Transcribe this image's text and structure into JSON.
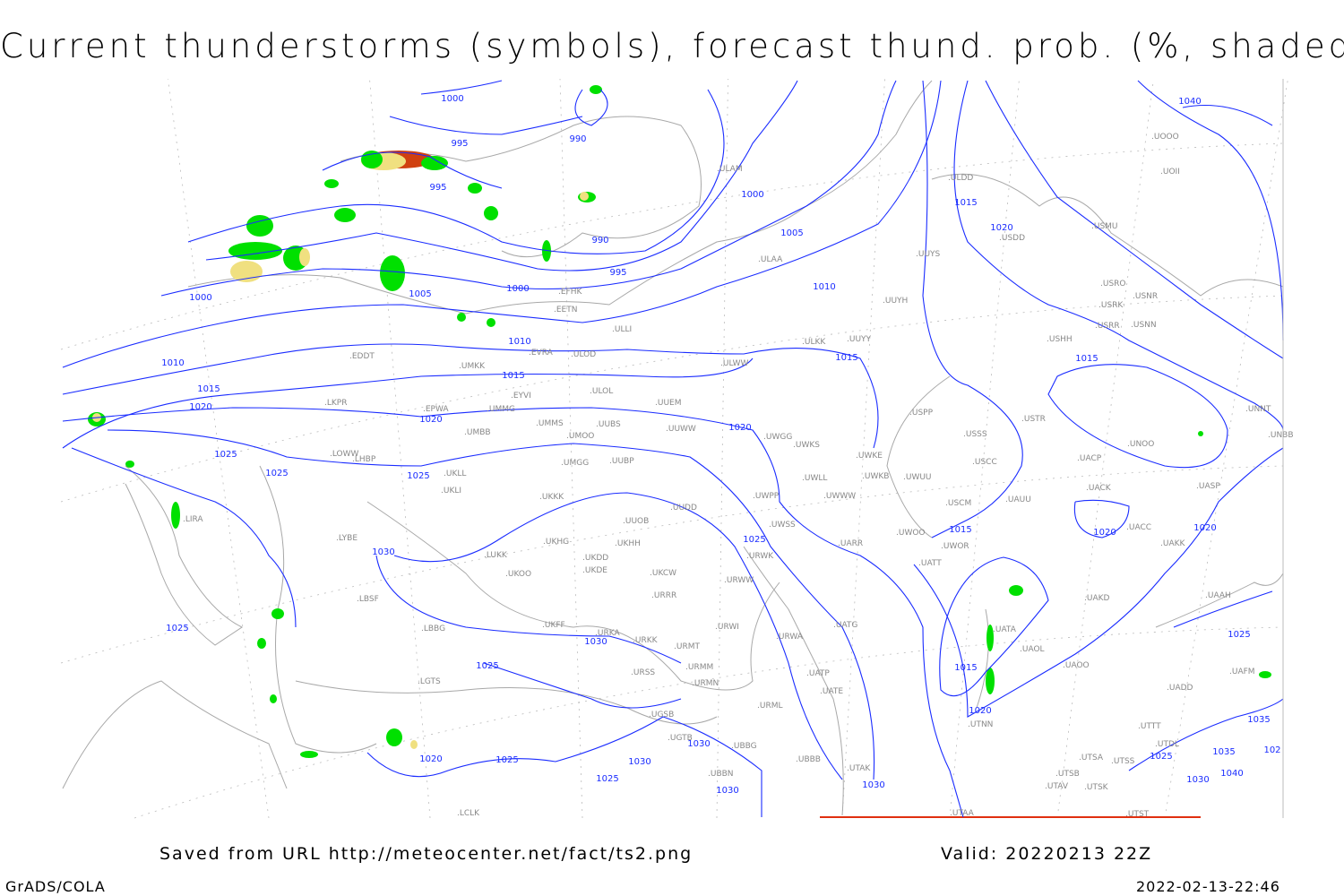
{
  "title": "Current thunderstorms (symbols), forecast thund. prob. (%, shaded)",
  "footer": {
    "source": "Saved from URL http://meteocenter.net/fact/ts2.png",
    "valid": "Valid: 20220213 22Z",
    "software": "GrADS/COLA",
    "timestamp": "2022-02-13-22:46"
  },
  "colors": {
    "isobar": "#1a2cff",
    "coast": "#a8a8a8",
    "prob_low": "#00e000",
    "prob_mid": "#f0e080",
    "prob_high": "#d04010"
  },
  "isobar_labels": [
    "1000",
    "995",
    "990",
    "995",
    "990",
    "995",
    "1000",
    "1005",
    "1000",
    "1005",
    "1000",
    "1010",
    "1015",
    "1020",
    "1010",
    "1010",
    "1015",
    "1015",
    "1015",
    "1015",
    "1020",
    "1020",
    "1020",
    "1025",
    "1025",
    "1025",
    "1030",
    "1025",
    "1015",
    "1020",
    "1020",
    "1030",
    "1025",
    "1025",
    "1015",
    "1020",
    "1025",
    "1040",
    "1035",
    "1025",
    "1035",
    "1020",
    "1025",
    "1025",
    "1030",
    "1030",
    "1030",
    "1030",
    "1030",
    "1040",
    "102"
  ],
  "stations": [
    "ULAM",
    "ULDD",
    "USDD",
    "USMU",
    "UUYS",
    "ULAA",
    "USRO",
    "USRK",
    "USNR",
    "USRR",
    "USNN",
    "UUYH",
    "EFHK",
    "EETN",
    "ULLI",
    "USHH",
    "ULKK",
    "UUYY",
    "EVRA",
    "ULOL",
    "UMKK",
    "ULWW",
    "ULOD",
    "EDDT",
    "EYVI",
    "UUEM",
    "EPWA",
    "UMMG",
    "LKPR",
    "UMMS",
    "UMOO",
    "UUBS",
    "UUWW",
    "UWGG",
    "UWKS",
    "USPP",
    "USSS",
    "USTR",
    "UNOO",
    "UNNT",
    "UNBB",
    "UMBB",
    "LOWW",
    "UKLL",
    "UKLI",
    "LHBP",
    "UMGG",
    "UUBP",
    "UWKE",
    "UWKB",
    "UWUU",
    "USCC",
    "UACP",
    "UWLL",
    "UWWW",
    "UWPP",
    "USCM",
    "UAUU",
    "UACK",
    "UASP",
    "UKKK",
    "UUDD",
    "UUOB",
    "LIRA",
    "LYBE",
    "UWSS",
    "UARR",
    "UWOO",
    "UWOR",
    "UACC",
    "UAKK",
    "LUKK",
    "UKHG",
    "UKDD",
    "UKHH",
    "UKDE",
    "UKOO",
    "UKCW",
    "URWW",
    "URWK",
    "UATT",
    "UAKD",
    "UAAH",
    "LBSF",
    "URRR",
    "UKFF",
    "LBBG",
    "URKA",
    "URKK",
    "URWI",
    "UATG",
    "URWA",
    "URMT",
    "UATA",
    "UAOL",
    "UAOO",
    "URSS",
    "URMM",
    "UATP",
    "URMN",
    "UATE",
    "LGTS",
    "URML",
    "UGSB",
    "UBBG",
    "UGTB",
    "UTNN",
    "UAFM",
    "UADD",
    "UTDL",
    "UTTT",
    "UTAK",
    "UBBB",
    "UBBN",
    "UTSA",
    "UTSS",
    "UTSB",
    "UTAV",
    "UTSK",
    "UTST",
    "UTAA",
    "LCLK",
    "UOOO",
    "UOII"
  ]
}
